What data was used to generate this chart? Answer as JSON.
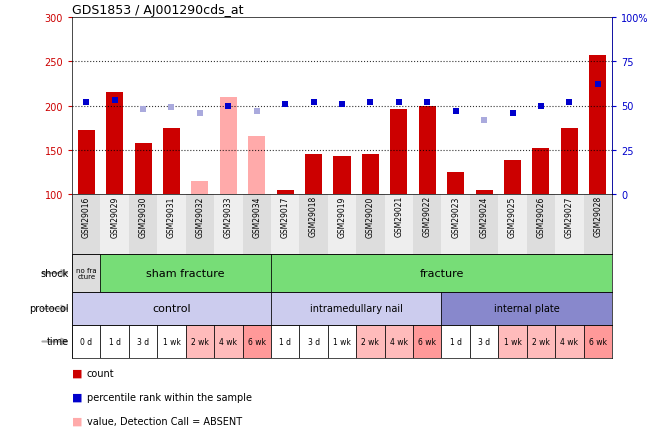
{
  "title": "GDS1853 / AJ001290cds_at",
  "samples": [
    "GSM29016",
    "GSM29029",
    "GSM29030",
    "GSM29031",
    "GSM29032",
    "GSM29033",
    "GSM29034",
    "GSM29017",
    "GSM29018",
    "GSM29019",
    "GSM29020",
    "GSM29021",
    "GSM29022",
    "GSM29023",
    "GSM29024",
    "GSM29025",
    "GSM29026",
    "GSM29027",
    "GSM29028"
  ],
  "count_values": [
    172,
    215,
    158,
    175,
    115,
    210,
    165,
    105,
    145,
    143,
    145,
    196,
    200,
    125,
    105,
    138,
    152,
    175,
    257
  ],
  "count_absent": [
    false,
    false,
    false,
    false,
    true,
    true,
    true,
    false,
    false,
    false,
    false,
    false,
    false,
    false,
    false,
    false,
    false,
    false,
    false
  ],
  "percentile_values": [
    52,
    53,
    48,
    49,
    46,
    50,
    47,
    51,
    52,
    51,
    52,
    52,
    52,
    47,
    42,
    46,
    50,
    52,
    62
  ],
  "percentile_absent": [
    false,
    false,
    true,
    true,
    true,
    false,
    true,
    false,
    false,
    false,
    false,
    false,
    false,
    false,
    true,
    false,
    false,
    false,
    false
  ],
  "ylim_left": [
    100,
    300
  ],
  "ylim_right": [
    0,
    100
  ],
  "yticks_left": [
    100,
    150,
    200,
    250,
    300
  ],
  "yticks_right": [
    0,
    25,
    50,
    75,
    100
  ],
  "ytick_labels_right": [
    "0",
    "25",
    "50",
    "75",
    "100%"
  ],
  "bar_color_present": "#cc0000",
  "bar_color_absent": "#ffaaaa",
  "dot_color_present": "#0000cc",
  "dot_color_absent": "#aaaadd",
  "bg_color": "#ffffff",
  "dotted_lines": [
    150,
    200,
    250
  ],
  "bar_width": 0.6,
  "dot_size": 4,
  "time_labels": [
    "0 d",
    "1 d",
    "3 d",
    "1 wk",
    "2 wk",
    "4 wk",
    "6 wk",
    "1 d",
    "3 d",
    "1 wk",
    "2 wk",
    "4 wk",
    "6 wk",
    "1 d",
    "3 d",
    "1 wk",
    "2 wk",
    "4 wk",
    "6 wk"
  ],
  "time_colors": [
    "#ffffff",
    "#ffffff",
    "#ffffff",
    "#ffffff",
    "#ffbbbb",
    "#ffbbbb",
    "#ff9999",
    "#ffffff",
    "#ffffff",
    "#ffffff",
    "#ffbbbb",
    "#ffbbbb",
    "#ff9999",
    "#ffffff",
    "#ffffff",
    "#ffbbbb",
    "#ffbbbb",
    "#ffbbbb",
    "#ff9999"
  ],
  "shock_nofrac_color": "#dddddd",
  "shock_sham_color": "#77dd77",
  "shock_frac_color": "#77dd77",
  "proto_control_color": "#ccccee",
  "proto_nail_color": "#ccccee",
  "proto_plate_color": "#8888cc",
  "label_arrow_color": "#aaaaaa",
  "xticklabel_bg": "#dddddd"
}
